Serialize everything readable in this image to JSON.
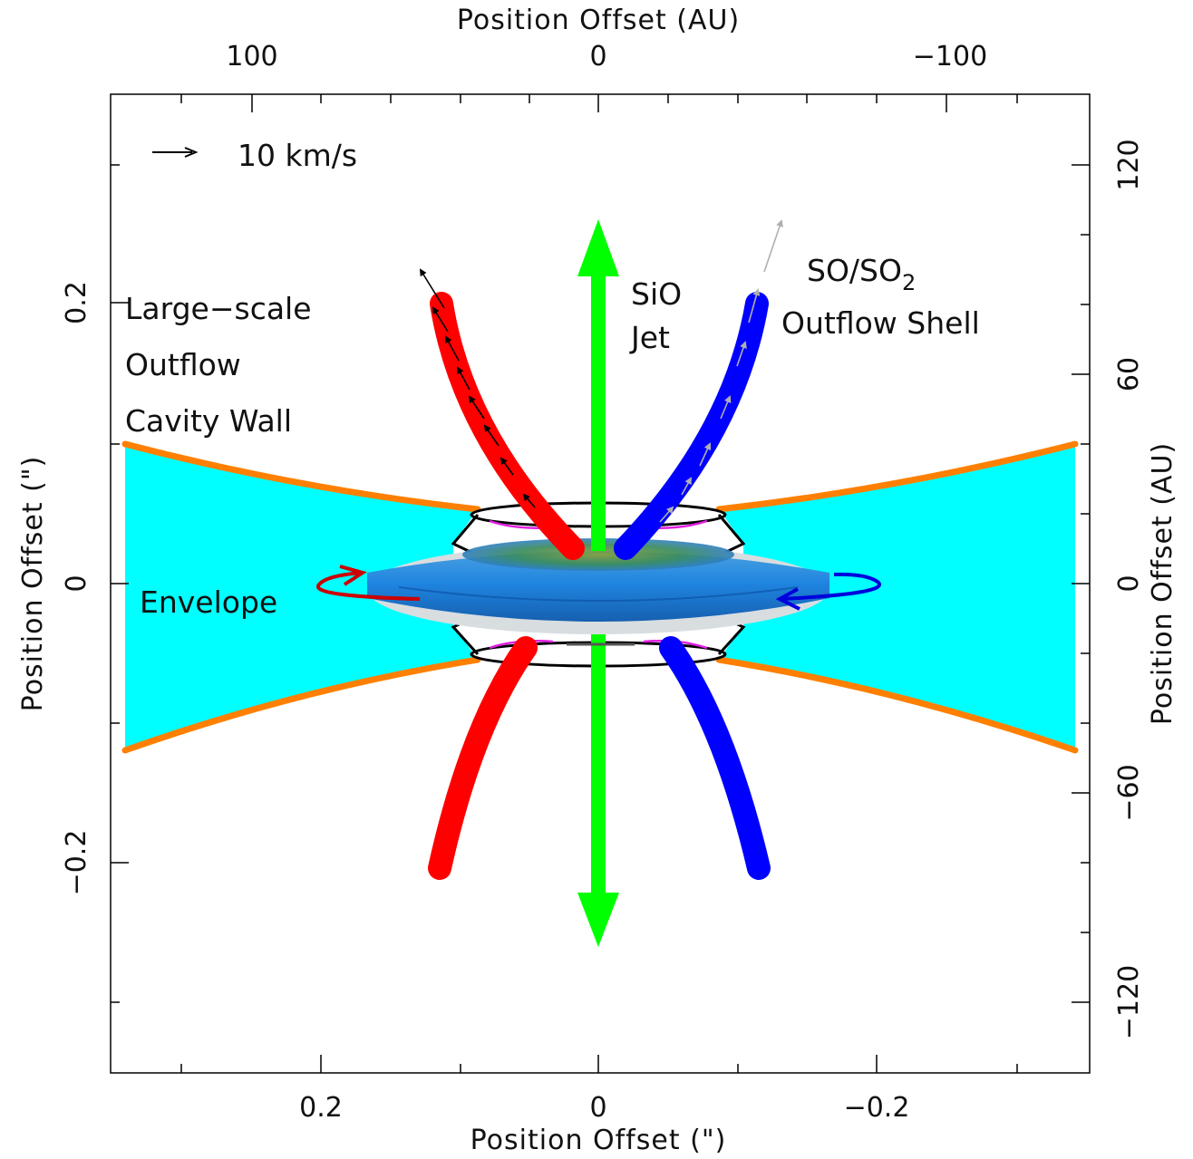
{
  "axes": {
    "top_label": "Position Offset (AU)",
    "bottom_label": "Position Offset (\")",
    "left_label": "Position Offset (\")",
    "right_label": "Position Offset (AU)",
    "top_ticks": [
      "100",
      "0",
      "−100"
    ],
    "bottom_ticks": [
      "0.2",
      "0",
      "−0.2"
    ],
    "left_ticks": [
      "0.2",
      "0",
      "−0.2"
    ],
    "right_ticks": [
      "120",
      "60",
      "0",
      "−60",
      "−120"
    ]
  },
  "legend": {
    "scale_label": "10 km/s"
  },
  "labels": {
    "cavity_line1": "Large−scale",
    "cavity_line2": "Outflow",
    "cavity_line3": "Cavity Wall",
    "jet_line1": "SiO",
    "jet_line2": "Jet",
    "shell_line1_main": "SO/SO",
    "shell_line1_sub": "2",
    "shell_line2": "Outflow Shell",
    "envelope": "Envelope"
  },
  "colors": {
    "envelope_fill": "#00ffff",
    "cavity_wall": "#ff8000",
    "jet": "#00ff00",
    "redshifted_shell": "#ff0000",
    "blueshifted_shell": "#0000ff",
    "disk": "#1e7fd8",
    "rotation_red": "#cc0000",
    "rotation_blue": "#0000dd"
  }
}
